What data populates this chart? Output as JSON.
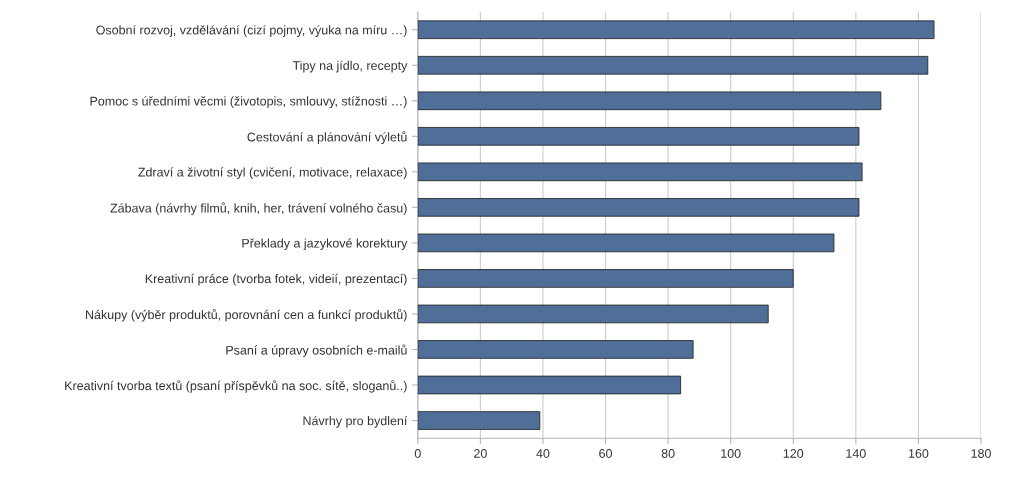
{
  "chart_data": {
    "type": "bar",
    "orientation": "horizontal",
    "categories": [
      "Osobní rozvoj, vzdělávání (cizí pojmy, výuka na míru …)",
      "Tipy na jídlo, recepty",
      "Pomoc s úředními věcmi (životopis, smlouvy, stížnosti …)",
      "Cestování a plánování výletů",
      "Zdraví a životní styl (cvičení, motivace, relaxace)",
      "Zábava (návrhy filmů, knih, her, trávení volného času)",
      "Překlady a jazykové korektury",
      "Kreativní práce (tvorba fotek, videií, prezentací)",
      "Nákupy (výběr produktů, porovnání cen a funkcí produktů)",
      "Psaní a úpravy osobních e-mailů",
      "Kreativní tvorba textů (psaní příspěvků na soc. sítě, sloganů..)",
      "Návrhy pro bydlení"
    ],
    "values": [
      165,
      163,
      148,
      141,
      142,
      141,
      133,
      120,
      112,
      88,
      84,
      39
    ],
    "color": "#4f6f99",
    "xlim": [
      0,
      180
    ],
    "xticks": [
      0,
      20,
      40,
      60,
      80,
      100,
      120,
      140,
      160,
      180
    ],
    "grid": "x"
  }
}
